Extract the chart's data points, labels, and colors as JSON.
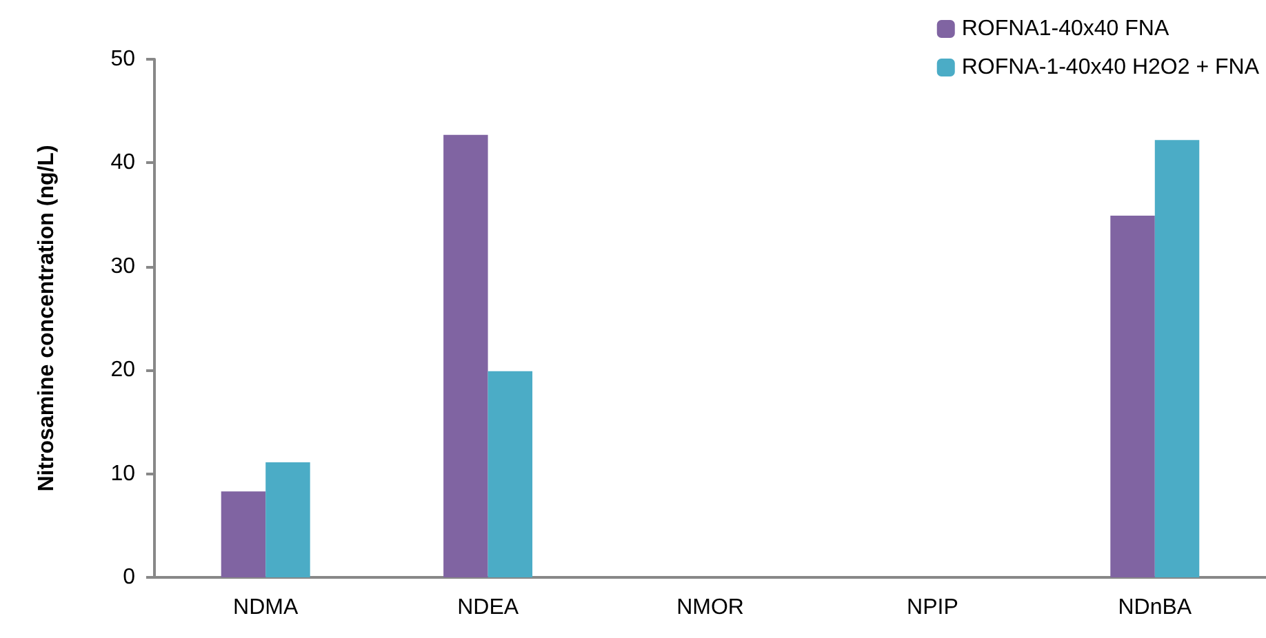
{
  "chart_data": {
    "type": "bar",
    "ylabel": "Nitrosamine concentration (ng/L)",
    "categories": [
      "NDMA",
      "NDEA",
      "NMOR",
      "NPIP",
      "NDnBA"
    ],
    "series": [
      {
        "name": "ROFNA1-40x40 FNA",
        "color": "#8064a2",
        "values": [
          8.3,
          42.7,
          0,
          0,
          34.9
        ]
      },
      {
        "name": "ROFNA-1-40x40 H2O2 + FNA",
        "color": "#4bacc6",
        "values": [
          11.1,
          19.9,
          0,
          0,
          42.2
        ]
      }
    ],
    "ylim": [
      0,
      50
    ],
    "yticks": [
      0,
      10,
      20,
      30,
      40,
      50
    ],
    "grid": false,
    "legend": "top right"
  }
}
